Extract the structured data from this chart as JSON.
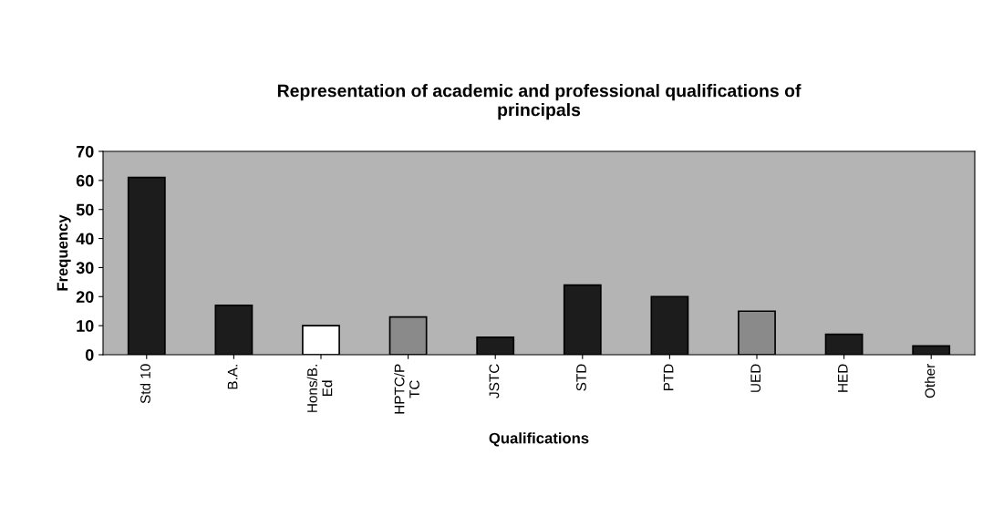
{
  "chart_data": {
    "type": "bar",
    "title": "Representation of academic and professional qualifications of\nprincipals",
    "xlabel": "Qualifications",
    "ylabel": "Frequency",
    "categories": [
      "Std 10",
      "B.A.",
      "Hons/B.\nEd",
      "HPTC/P\nTC",
      "JSTC",
      "STD",
      "PTD",
      "UED",
      "HED",
      "Other"
    ],
    "values": [
      61,
      17,
      10,
      13,
      6,
      24,
      20,
      15,
      7,
      3
    ],
    "colors": [
      "#1c1c1c",
      "#1c1c1c",
      "#ffffff",
      "#8a8a8a",
      "#1c1c1c",
      "#1c1c1c",
      "#1c1c1c",
      "#8a8a8a",
      "#1c1c1c",
      "#1c1c1c"
    ],
    "ylim": [
      0,
      70
    ],
    "yticks": [
      0,
      10,
      20,
      30,
      40,
      50,
      60,
      70
    ],
    "grid": false,
    "legend": false
  }
}
